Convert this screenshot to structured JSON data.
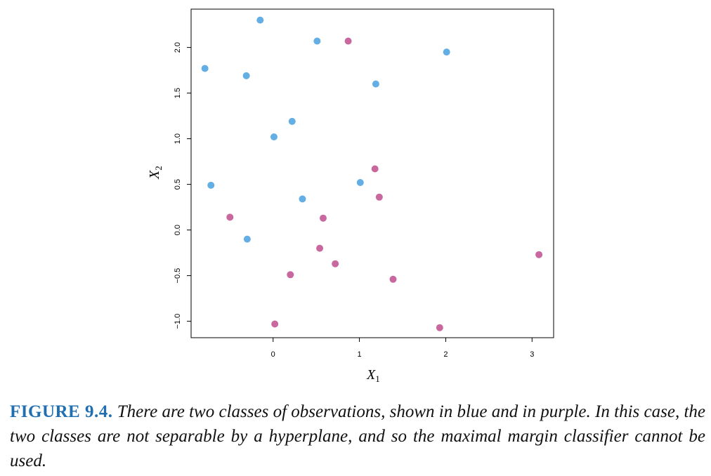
{
  "chart_data": {
    "type": "scatter",
    "xlabel": "X",
    "xlabel_sub": "1",
    "ylabel": "X",
    "ylabel_sub": "2",
    "xlim": [
      -0.95,
      3.25
    ],
    "ylim": [
      -1.18,
      2.42
    ],
    "x_ticks": [
      0,
      1,
      2,
      3
    ],
    "y_ticks": [
      -1.0,
      -0.5,
      0.0,
      0.5,
      1.0,
      1.5,
      2.0
    ],
    "x_tick_labels": [
      "0",
      "1",
      "2",
      "3"
    ],
    "y_tick_labels": [
      "−1.0",
      "−0.5",
      "0.0",
      "0.5",
      "1.0",
      "1.5",
      "2.0"
    ],
    "grid": false,
    "series": [
      {
        "color": "#63aee4",
        "points": [
          {
            "x": -0.15,
            "y": 2.3
          },
          {
            "x": 0.51,
            "y": 2.07
          },
          {
            "x": 2.01,
            "y": 1.95
          },
          {
            "x": -0.79,
            "y": 1.77
          },
          {
            "x": -0.31,
            "y": 1.69
          },
          {
            "x": 1.19,
            "y": 1.6
          },
          {
            "x": 0.22,
            "y": 1.19
          },
          {
            "x": 0.01,
            "y": 1.02
          },
          {
            "x": -0.72,
            "y": 0.49
          },
          {
            "x": 1.01,
            "y": 0.52
          },
          {
            "x": 0.34,
            "y": 0.34
          },
          {
            "x": -0.3,
            "y": -0.1
          }
        ]
      },
      {
        "color": "#c9679f",
        "points": [
          {
            "x": 0.87,
            "y": 2.07
          },
          {
            "x": 1.18,
            "y": 0.67
          },
          {
            "x": 1.23,
            "y": 0.36
          },
          {
            "x": -0.5,
            "y": 0.14
          },
          {
            "x": 0.58,
            "y": 0.13
          },
          {
            "x": 0.54,
            "y": -0.2
          },
          {
            "x": 0.72,
            "y": -0.37
          },
          {
            "x": 0.2,
            "y": -0.49
          },
          {
            "x": 1.39,
            "y": -0.54
          },
          {
            "x": 3.08,
            "y": -0.27
          },
          {
            "x": 0.02,
            "y": -1.03
          },
          {
            "x": 1.93,
            "y": -1.07
          }
        ]
      }
    ]
  },
  "caption": {
    "label": "FIGURE 9.4.",
    "text": "There are two classes of observations, shown in blue and in purple. In this case, the two classes are not separable by a hyperplane, and so the maximal margin classifier cannot be used."
  }
}
